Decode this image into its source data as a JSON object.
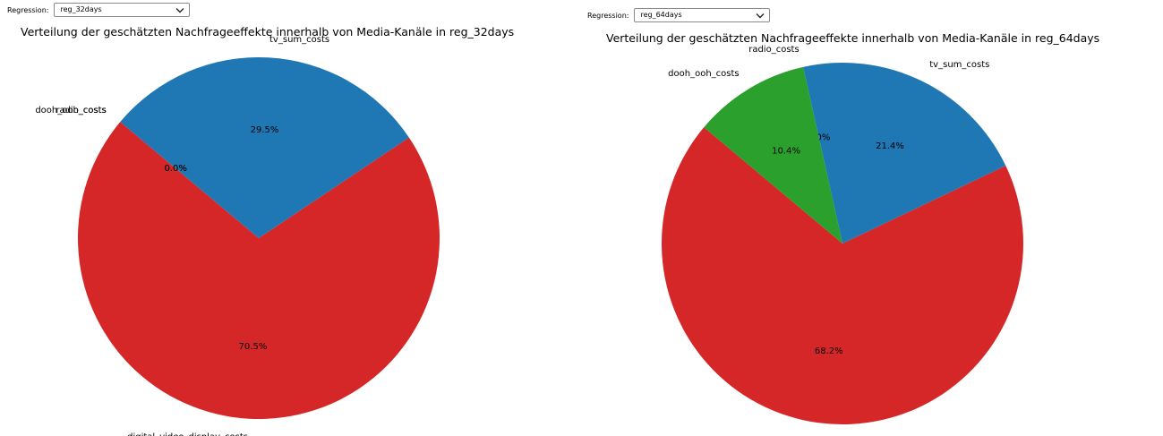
{
  "panels": [
    {
      "control": {
        "label": "Regression:",
        "value": "reg_32days"
      },
      "title": "Verteilung der geschätzten Nachfrageeffekte innerhalb von Media-Kanäle in reg_32days"
    },
    {
      "control": {
        "label": "Regression:",
        "value": "reg_64days"
      },
      "title": "Verteilung der geschätzten Nachfrageeffekte innerhalb von Media-Kanäle in reg_64days"
    }
  ],
  "chart_data": [
    {
      "type": "pie",
      "title": "Verteilung der geschätzten Nachfrageeffekte innerhalb von Media-Kanäle in reg_32days",
      "slices": [
        {
          "label": "digital_video_display_costs",
          "value": 70.5,
          "pct_label": "70.5%",
          "color": "#d62728"
        },
        {
          "label": "tv_sum_costs",
          "value": 29.5,
          "pct_label": "29.5%",
          "color": "#1f77b4"
        },
        {
          "label": "radio_costs",
          "value": 0.0,
          "pct_label": "0.0%",
          "color": "#ff7f0e"
        },
        {
          "label": "dooh_ooh_costs",
          "value": 0.0,
          "pct_label": "0.0%",
          "color": "#2ca02c"
        }
      ]
    },
    {
      "type": "pie",
      "title": "Verteilung der geschätzten Nachfrageeffekte innerhalb von Media-Kanäle in reg_64days",
      "slices": [
        {
          "label": "digital_video_display_costs",
          "value": 68.2,
          "pct_label": "68.2%",
          "color": "#d62728"
        },
        {
          "label": "tv_sum_costs",
          "value": 21.4,
          "pct_label": "21.4%",
          "color": "#1f77b4"
        },
        {
          "label": "radio_costs",
          "value": 0.0,
          "pct_label": "0.0%",
          "color": "#ff7f0e"
        },
        {
          "label": "dooh_ooh_costs",
          "value": 10.4,
          "pct_label": "10.4%",
          "color": "#2ca02c"
        }
      ]
    }
  ]
}
